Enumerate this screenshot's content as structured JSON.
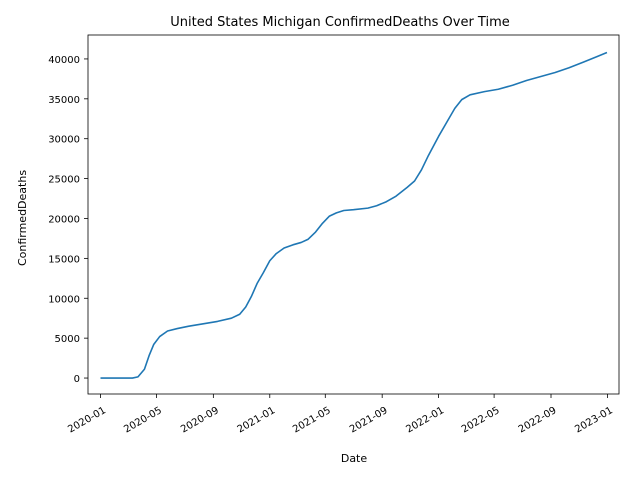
{
  "chart_data": {
    "type": "line",
    "title": "United States Michigan ConfirmedDeaths Over Time",
    "xlabel": "Date",
    "ylabel": "ConfirmedDeaths",
    "xlim": [
      "2019-12-05",
      "2023-01-26"
    ],
    "ylim": [
      -2000,
      43000
    ],
    "grid": false,
    "x_ticks": [
      "2020-01",
      "2020-05",
      "2020-09",
      "2021-01",
      "2021-05",
      "2021-09",
      "2022-01",
      "2022-05",
      "2022-09",
      "2023-01"
    ],
    "y_ticks": [
      0,
      5000,
      10000,
      15000,
      20000,
      25000,
      30000,
      35000,
      40000
    ],
    "series": [
      {
        "color": "#1f77b4",
        "x": [
          "2020-01-01",
          "2020-03-10",
          "2020-03-22",
          "2020-04-05",
          "2020-04-15",
          "2020-04-25",
          "2020-05-08",
          "2020-05-25",
          "2020-06-15",
          "2020-07-10",
          "2020-08-10",
          "2020-09-10",
          "2020-10-10",
          "2020-10-28",
          "2020-11-10",
          "2020-11-22",
          "2020-12-05",
          "2020-12-18",
          "2021-01-01",
          "2021-01-15",
          "2021-02-01",
          "2021-02-20",
          "2021-03-10",
          "2021-03-25",
          "2021-04-10",
          "2021-04-25",
          "2021-05-10",
          "2021-05-25",
          "2021-06-10",
          "2021-07-01",
          "2021-08-01",
          "2021-08-20",
          "2021-09-10",
          "2021-10-01",
          "2021-10-25",
          "2021-11-10",
          "2021-11-25",
          "2021-12-10",
          "2022-01-01",
          "2022-01-20",
          "2022-02-05",
          "2022-02-20",
          "2022-03-10",
          "2022-04-10",
          "2022-05-10",
          "2022-06-10",
          "2022-07-10",
          "2022-08-10",
          "2022-09-10",
          "2022-10-10",
          "2022-11-10",
          "2022-12-10",
          "2022-12-31"
        ],
        "values": [
          0,
          0,
          150,
          1100,
          2800,
          4200,
          5200,
          5900,
          6200,
          6500,
          6800,
          7100,
          7500,
          8000,
          8900,
          10200,
          11900,
          13200,
          14700,
          15600,
          16300,
          16700,
          17000,
          17400,
          18300,
          19400,
          20300,
          20700,
          21000,
          21100,
          21300,
          21600,
          22100,
          22800,
          23900,
          24700,
          26100,
          27900,
          30300,
          32200,
          33800,
          34900,
          35500,
          35900,
          36200,
          36700,
          37300,
          37800,
          38300,
          38900,
          39600,
          40300,
          40800
        ]
      }
    ]
  }
}
